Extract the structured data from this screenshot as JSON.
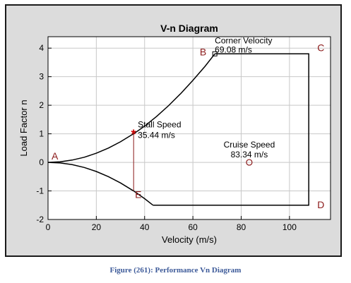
{
  "chart_data": {
    "type": "line",
    "title": "V-n Diagram",
    "xlabel": "Velocity (m/s)",
    "ylabel": "Load Factor n",
    "xlim": [
      0,
      117
    ],
    "ylim": [
      -2,
      4.4
    ],
    "xticks": [
      0,
      20,
      40,
      60,
      80,
      100
    ],
    "yticks": [
      -2,
      -1,
      0,
      1,
      2,
      3,
      4
    ],
    "grid": true,
    "series": [
      {
        "name": "",
        "color": "#000000",
        "x": [
          0,
          5,
          10,
          15,
          20,
          25,
          30,
          35,
          35.44,
          40,
          45,
          50,
          55,
          60,
          65,
          69.08
        ],
        "y": [
          0,
          0.02,
          0.08,
          0.18,
          0.32,
          0.5,
          0.72,
          0.98,
          1.0,
          1.27,
          1.61,
          1.99,
          2.41,
          2.87,
          3.36,
          3.8
        ]
      },
      {
        "name": "",
        "color": "#000000",
        "x": [
          0,
          5,
          10,
          15,
          20,
          25,
          30,
          35,
          35.44,
          40,
          43.5
        ],
        "y": [
          0,
          -0.02,
          -0.08,
          -0.18,
          -0.32,
          -0.5,
          -0.72,
          -0.98,
          -1.0,
          -1.27,
          -1.5
        ]
      },
      {
        "name": "",
        "color": "#000000",
        "x": [
          69.08,
          108,
          108,
          43.5
        ],
        "y": [
          3.8,
          3.8,
          -1.5,
          -1.5
        ]
      },
      {
        "name": "",
        "color": "#8b1a1a",
        "x": [
          35.44,
          35.44
        ],
        "y": [
          1.0,
          -1.0
        ]
      }
    ],
    "points": [
      {
        "label": "A",
        "x": 0,
        "y": 0
      },
      {
        "label": "B",
        "x": 69.08,
        "y": 3.8
      },
      {
        "label": "C",
        "x": 108,
        "y": 3.8
      },
      {
        "label": "D",
        "x": 108,
        "y": -1.5
      },
      {
        "label": "E",
        "x": 35.44,
        "y": -1.0
      }
    ],
    "annotations": [
      {
        "lines": [
          "Corner Velocity",
          "69.08 m/s"
        ],
        "x": 69.08,
        "y": 3.8,
        "marker": "square"
      },
      {
        "lines": [
          "Stall Speed",
          "35.44 m/s"
        ],
        "x": 35.44,
        "y": 1.0,
        "marker": "star"
      },
      {
        "lines": [
          "Cruise Speed",
          "83.34 m/s"
        ],
        "x": 83.34,
        "y": 0,
        "marker": "circle"
      }
    ]
  },
  "caption": "Figure (261): Performance Vn Diagram"
}
